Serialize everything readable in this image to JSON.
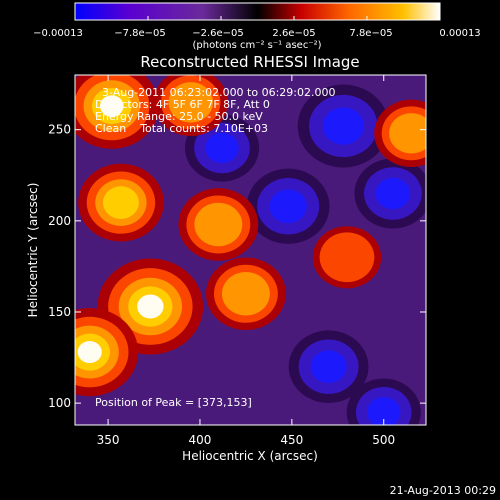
{
  "chart_data": {
    "type": "heatmap",
    "title": "Reconstructed RHESSI Image",
    "xlabel": "Heliocentric X (arcsec)",
    "ylabel": "Heliocentric Y (arcsec)",
    "xlim": [
      332,
      523
    ],
    "ylim": [
      88,
      280
    ],
    "x_ticks": [
      350,
      400,
      450,
      500
    ],
    "y_ticks": [
      100,
      150,
      200,
      250
    ],
    "colorbar": {
      "min": -0.00013,
      "max": 0.00013,
      "tick_labels": [
        "−0.00013",
        "−7.8e−05",
        "−2.6e−05",
        "2.6e−05",
        "7.8e−05",
        "0.00013"
      ],
      "unit_label": "(photons cm⁻² s⁻¹ asec⁻²)",
      "colors": [
        "#0000ff",
        "#7000c8",
        "#6a2a9a",
        "#000000",
        "#c80000",
        "#ff6600",
        "#ffc000",
        "#ffffff"
      ]
    },
    "annotations": [
      "3-Aug-2011 06:23:02.000 to 06:29:02.000",
      "Detectors: 4F 5F 6F 7F 8F, Att 0",
      "Energy Range: 25.0 - 50.0 keV",
      "Clean    Total counts: 7.10E+03"
    ],
    "peak_label": "Position of Peak = [373,153]",
    "peak": [
      373,
      153
    ],
    "bright_sources": [
      {
        "x": 373,
        "y": 153,
        "level": 1.0
      },
      {
        "x": 352,
        "y": 263,
        "level": 0.8
      },
      {
        "x": 340,
        "y": 128,
        "level": 0.85
      },
      {
        "x": 410,
        "y": 198,
        "level": 0.55
      },
      {
        "x": 357,
        "y": 210,
        "level": 0.65
      },
      {
        "x": 425,
        "y": 160,
        "level": 0.55
      },
      {
        "x": 515,
        "y": 248,
        "level": 0.45
      },
      {
        "x": 395,
        "y": 265,
        "level": 0.45
      },
      {
        "x": 480,
        "y": 180,
        "level": 0.35
      }
    ],
    "dim_sources": [
      {
        "x": 478,
        "y": 252,
        "level": -0.75
      },
      {
        "x": 448,
        "y": 208,
        "level": -0.6
      },
      {
        "x": 470,
        "y": 120,
        "level": -0.55
      },
      {
        "x": 500,
        "y": 95,
        "level": -0.45
      },
      {
        "x": 412,
        "y": 240,
        "level": -0.45
      },
      {
        "x": 505,
        "y": 215,
        "level": -0.5
      }
    ]
  },
  "footer_date": "21-Aug-2013 00:29"
}
